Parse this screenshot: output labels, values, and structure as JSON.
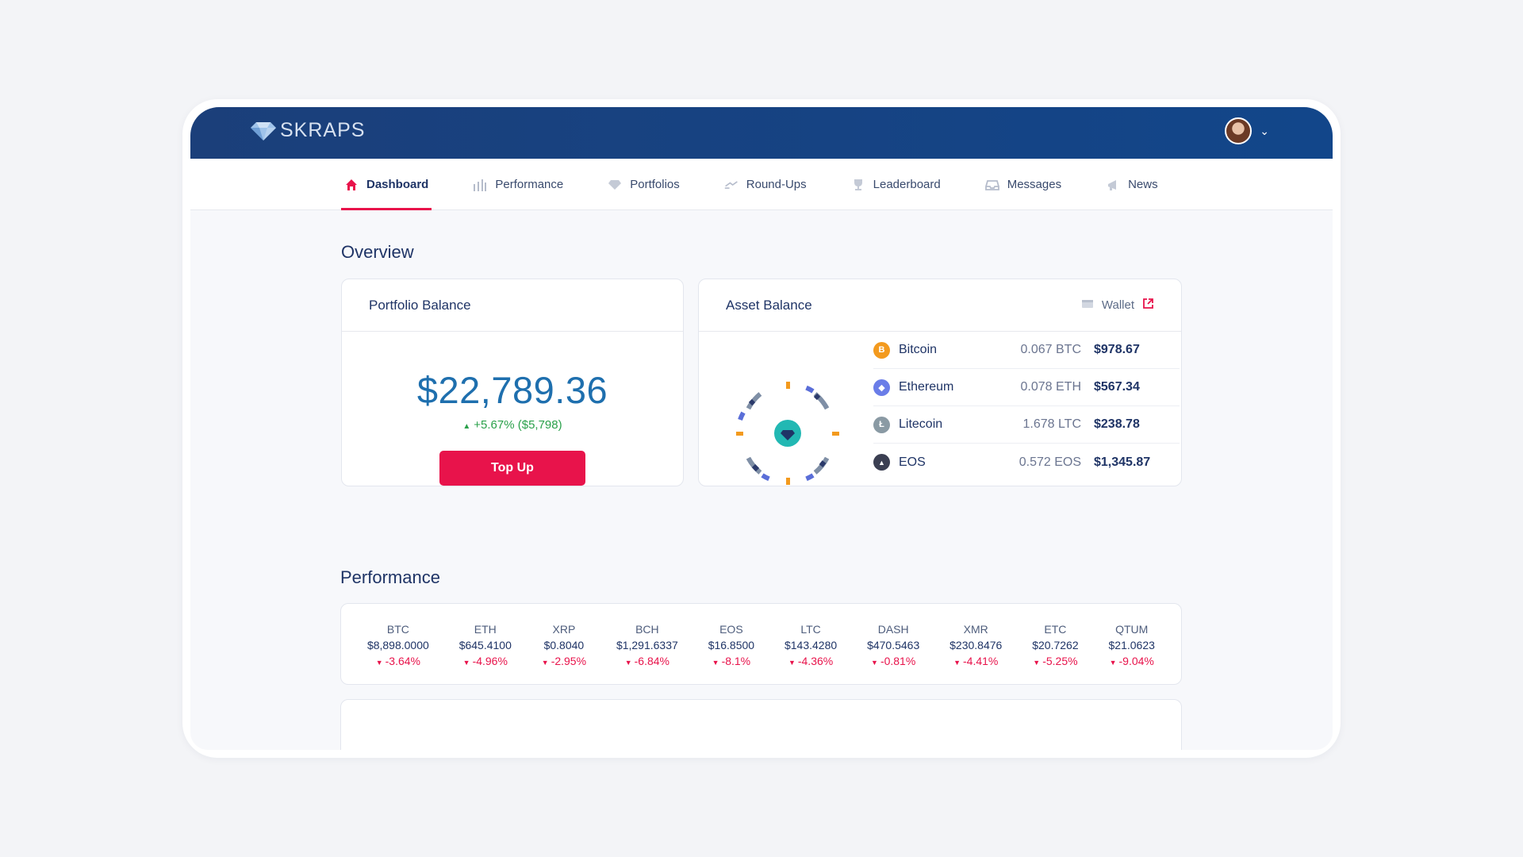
{
  "brand": {
    "name": "SKRAPS"
  },
  "nav": [
    {
      "label": "Dashboard",
      "icon": "home-icon",
      "active": true
    },
    {
      "label": "Performance",
      "icon": "bar-chart-icon"
    },
    {
      "label": "Portfolios",
      "icon": "diamond-icon"
    },
    {
      "label": "Round-Ups",
      "icon": "exchange-icon"
    },
    {
      "label": "Leaderboard",
      "icon": "trophy-icon"
    },
    {
      "label": "Messages",
      "icon": "inbox-icon"
    },
    {
      "label": "News",
      "icon": "megaphone-icon"
    }
  ],
  "overview": {
    "title": "Overview",
    "portfolio": {
      "title": "Portfolio Balance",
      "balance": "$22,789.36",
      "change": "+5.67% ($5,798)",
      "topup_label": "Top Up"
    },
    "assets": {
      "title": "Asset Balance",
      "wallet_label": "Wallet",
      "items": [
        {
          "name": "Bitcoin",
          "amount": "0.067 BTC",
          "value": "$978.67",
          "color": "#f39a1e",
          "glyph": "B"
        },
        {
          "name": "Ethereum",
          "amount": "0.078 ETH",
          "value": "$567.34",
          "color": "#6a7de8",
          "glyph": "◆"
        },
        {
          "name": "Litecoin",
          "amount": "1.678 LTC",
          "value": "$238.78",
          "color": "#8a9aa4",
          "glyph": "Ł"
        },
        {
          "name": "EOS",
          "amount": "0.572 EOS",
          "value": "$1,345.87",
          "color": "#3b3f52",
          "glyph": "▲"
        }
      ]
    }
  },
  "performance": {
    "title": "Performance",
    "items": [
      {
        "symbol": "BTC",
        "price": "$8,898.0000",
        "change": "-3.64%"
      },
      {
        "symbol": "ETH",
        "price": "$645.4100",
        "change": "-4.96%"
      },
      {
        "symbol": "XRP",
        "price": "$0.8040",
        "change": "-2.95%"
      },
      {
        "symbol": "BCH",
        "price": "$1,291.6337",
        "change": "-6.84%"
      },
      {
        "symbol": "EOS",
        "price": "$16.8500",
        "change": "-8.1%"
      },
      {
        "symbol": "LTC",
        "price": "$143.4280",
        "change": "-4.36%"
      },
      {
        "symbol": "DASH",
        "price": "$470.5463",
        "change": "-0.81%"
      },
      {
        "symbol": "XMR",
        "price": "$230.8476",
        "change": "-4.41%"
      },
      {
        "symbol": "ETC",
        "price": "$20.7262",
        "change": "-5.25%"
      },
      {
        "symbol": "QTUM",
        "price": "$21.0623",
        "change": "-9.04%"
      }
    ]
  },
  "colors": {
    "accent": "#e8134b",
    "header": "#12468a",
    "balance": "#1e6fae",
    "positive": "#2aa04a"
  }
}
